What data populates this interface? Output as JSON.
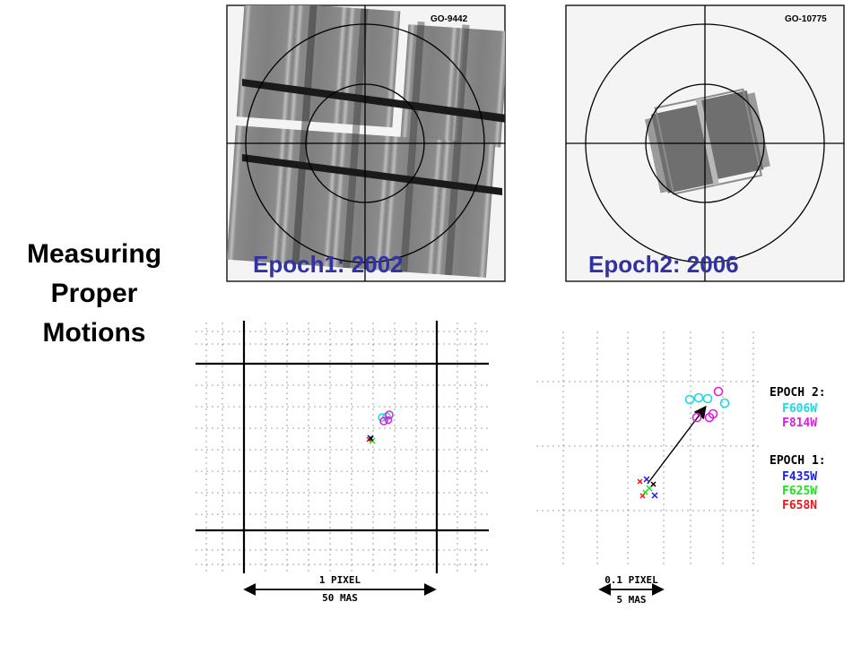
{
  "title": {
    "line1": "Measuring",
    "line2": "Proper",
    "line3": "Motions"
  },
  "epoch1": {
    "label": "Epoch1:  2002",
    "program": "GO-9442"
  },
  "epoch2": {
    "label": "Epoch2:  2006",
    "program": "GO-10775"
  },
  "left_scale": {
    "top_label": "1 PIXEL",
    "bottom_label": "50 MAS"
  },
  "right_scale": {
    "top_label": "0.1 PIXEL",
    "bottom_label": "5 MAS"
  },
  "legend": {
    "epoch2_heading": "EPOCH 2:",
    "epoch2_filters": [
      {
        "name": "F606W",
        "color": "#22d8e0"
      },
      {
        "name": "F814W",
        "color": "#e020e0"
      }
    ],
    "epoch1_heading": "EPOCH 1:",
    "epoch1_filters": [
      {
        "name": "F435W",
        "color": "#1a20e8"
      },
      {
        "name": "F625W",
        "color": "#22e020"
      },
      {
        "name": "F658N",
        "color": "#f01818"
      }
    ]
  }
}
